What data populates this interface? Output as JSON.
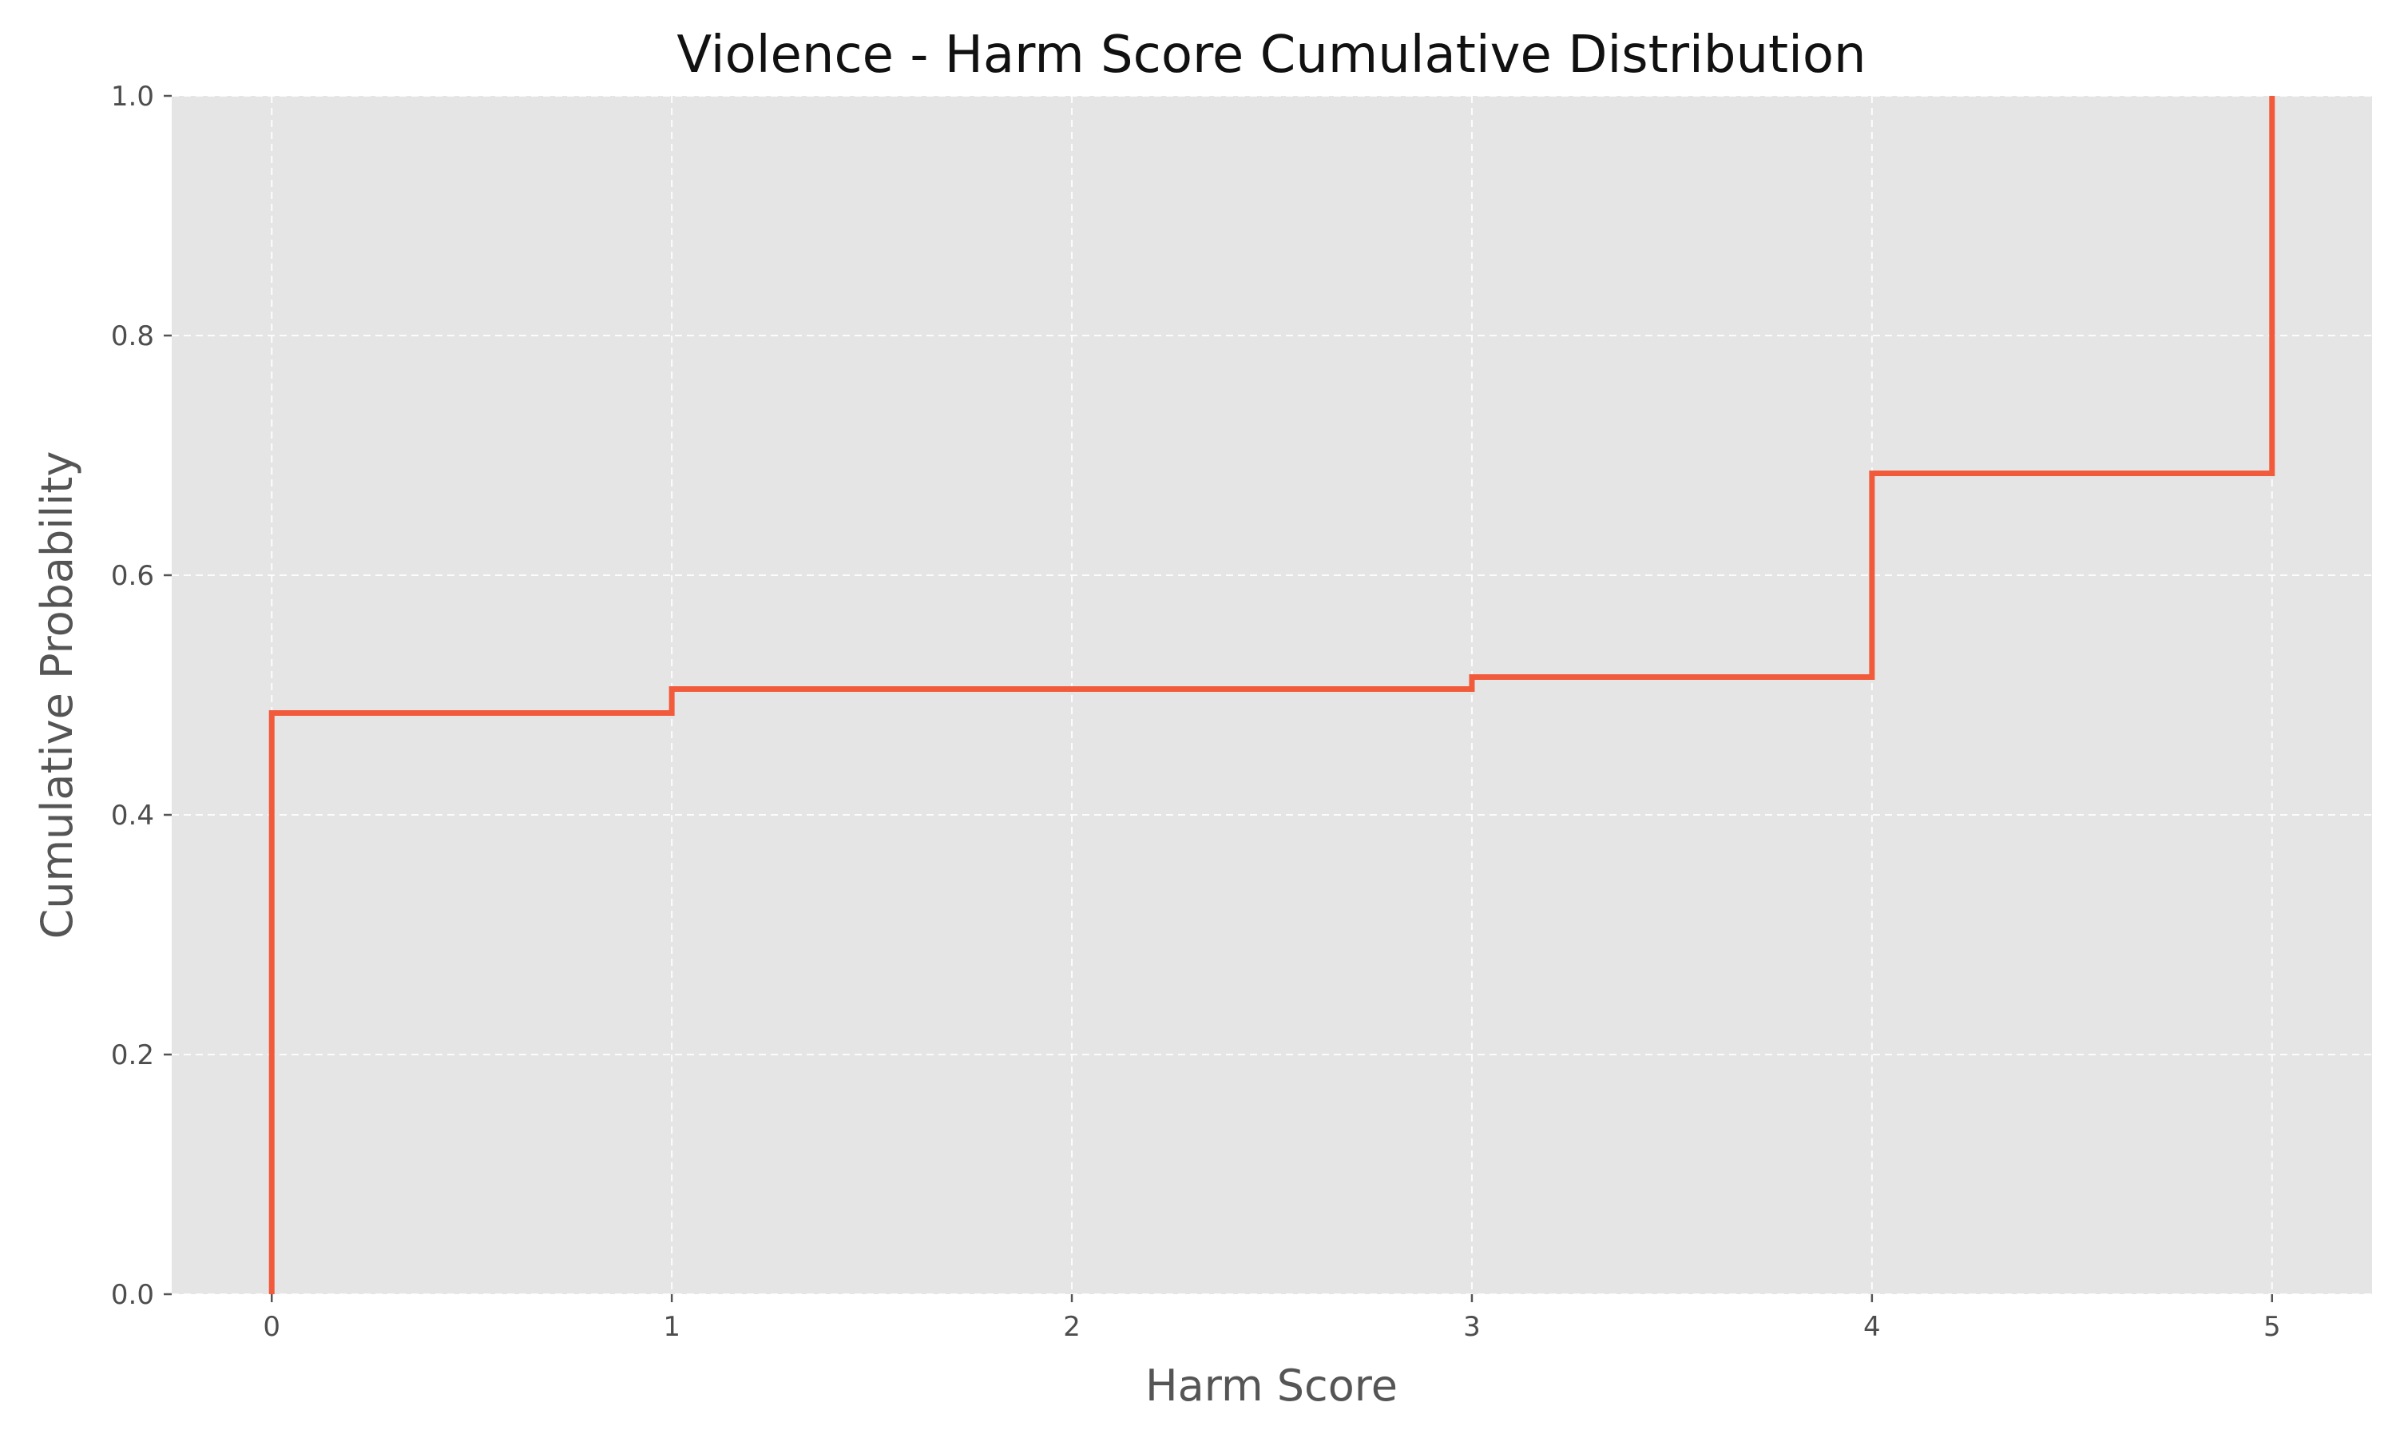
{
  "chart_data": {
    "type": "line",
    "title": "Violence - Harm Score Cumulative Distribution",
    "xlabel": "Harm Score",
    "ylabel": "Cumulative Probability",
    "xlim": [
      -0.25,
      5.25
    ],
    "ylim": [
      0.0,
      1.0
    ],
    "x_ticks": [
      0,
      1,
      2,
      3,
      4,
      5
    ],
    "x_tick_labels": [
      "0",
      "1",
      "2",
      "3",
      "4",
      "5"
    ],
    "y_ticks": [
      0.0,
      0.2,
      0.4,
      0.6,
      0.8,
      1.0
    ],
    "y_tick_labels": [
      "0.0",
      "0.2",
      "0.4",
      "0.6",
      "0.8",
      "1.0"
    ],
    "grid": true,
    "step": "post",
    "series": [
      {
        "color": "#f15a3a",
        "x": [
          0,
          0,
          1,
          3,
          4,
          5
        ],
        "y": [
          0.0,
          0.485,
          0.505,
          0.515,
          0.685,
          1.0
        ]
      }
    ]
  }
}
